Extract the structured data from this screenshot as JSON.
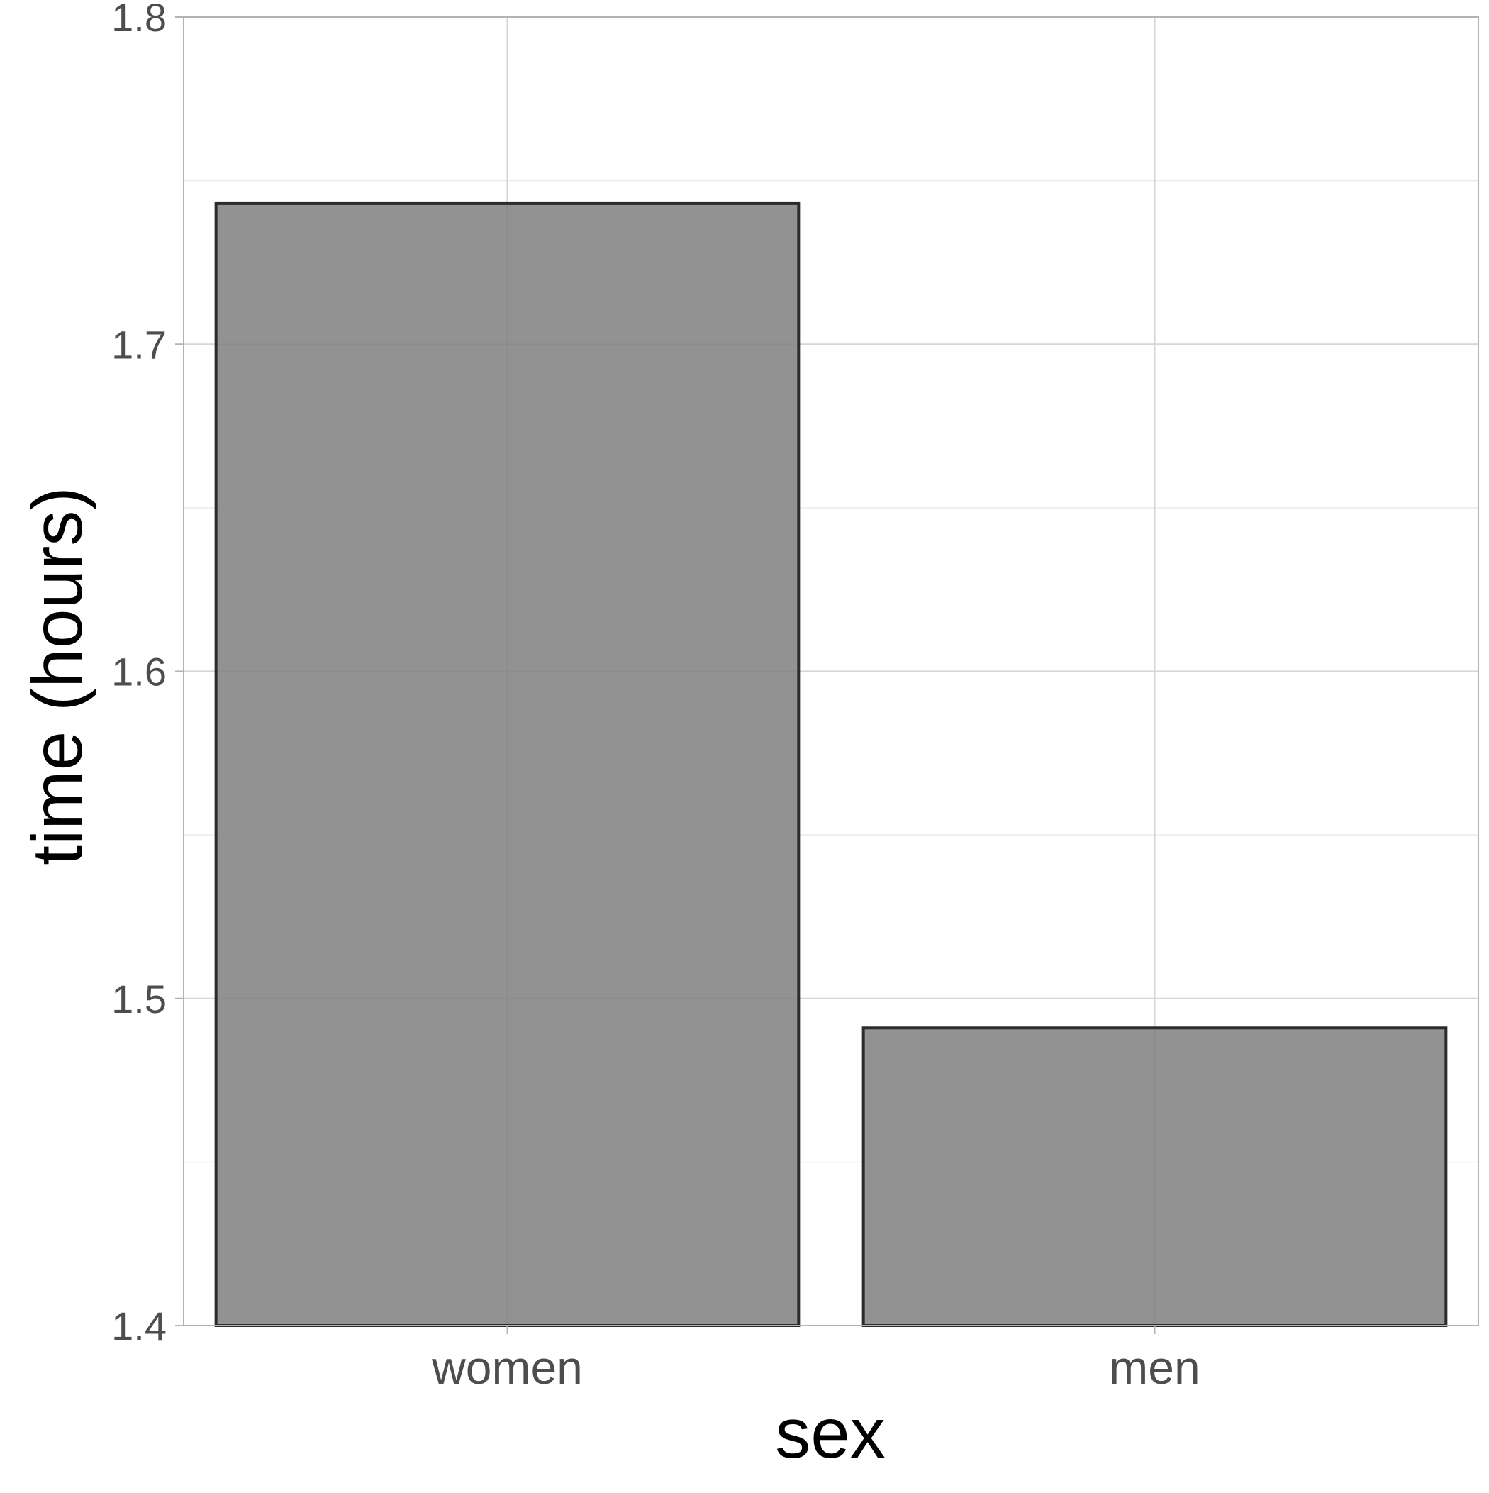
{
  "chart_data": {
    "type": "bar",
    "categories": [
      "women",
      "men"
    ],
    "values": [
      1.743,
      1.491
    ],
    "xlabel": "sex",
    "ylabel": "time (hours)",
    "ylim": [
      1.4,
      1.8
    ],
    "yticks": [
      "1.4",
      "1.5",
      "1.6",
      "1.7",
      "1.8"
    ],
    "grid": true,
    "legend": "none",
    "colors": {
      "bar_fill": "#7f7f7f",
      "bar_stroke": "#2b2b2b",
      "grid_major": "#d6d6d6",
      "grid_minor": "#ebebeb",
      "panel_border": "#b3b3b3",
      "tick_text": "#4d4d4d",
      "axis_title": "#000000"
    }
  }
}
